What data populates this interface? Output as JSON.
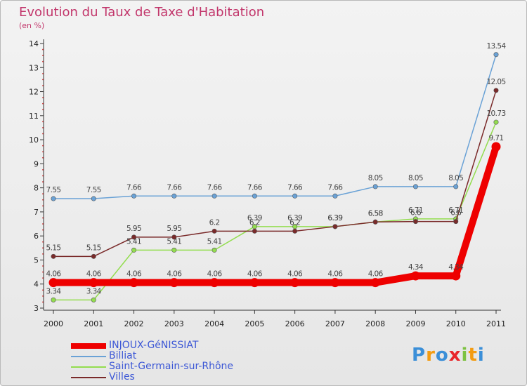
{
  "header": {
    "title": "Evolution du Taux de Taxe d'Habitation",
    "subtitle": "(en %)"
  },
  "chart_data": {
    "type": "line",
    "title": "Evolution du Taux de Taxe d'Habitation",
    "ylabel": "(en %)",
    "xlabel": "",
    "x": [
      "2000",
      "2001",
      "2002",
      "2003",
      "2004",
      "2005",
      "2006",
      "2007",
      "2008",
      "2009",
      "2010",
      "2011"
    ],
    "ylim": [
      3,
      14
    ],
    "yticks": [
      "3",
      "4",
      "5",
      "6",
      "7",
      "8",
      "9",
      "10",
      "11",
      "12",
      "13",
      "14"
    ],
    "grid": false,
    "legend_position": "bottom-left",
    "series": [
      {
        "name": "INJOUX-GéNISSIAT",
        "color": "#ee0000",
        "values": [
          4.06,
          4.06,
          4.06,
          4.06,
          4.06,
          4.06,
          4.06,
          4.06,
          4.06,
          4.34,
          4.34,
          9.71
        ],
        "labels": [
          "4.06",
          "4.06",
          "4.06",
          "4.06",
          "4.06",
          "4.06",
          "4.06",
          "4.06",
          "4.06",
          "4.34",
          "4.34",
          "9.71"
        ]
      },
      {
        "name": "Billiat",
        "color": "#6aa2d6",
        "values": [
          7.55,
          7.55,
          7.66,
          7.66,
          7.66,
          7.66,
          7.66,
          7.66,
          8.05,
          8.05,
          8.05,
          13.54
        ],
        "labels": [
          "7.55",
          "7.55",
          "7.66",
          "7.66",
          "7.66",
          "7.66",
          "7.66",
          "7.66",
          "8.05",
          "8.05",
          "8.05",
          "13.54"
        ]
      },
      {
        "name": "Saint-Germain-sur-Rhône",
        "color": "#93dd4f",
        "values": [
          3.34,
          3.34,
          5.41,
          5.41,
          5.41,
          6.39,
          6.39,
          6.39,
          6.58,
          6.71,
          6.71,
          10.73
        ],
        "labels": [
          "3.34",
          "3.34",
          "5.41",
          "5.41",
          "5.41",
          "6.39",
          "6.39",
          "6.39",
          "6.58",
          "6.71",
          "6.71",
          "10.73"
        ]
      },
      {
        "name": "Villes",
        "color": "#7a2a2a",
        "values": [
          5.15,
          5.15,
          5.95,
          5.95,
          6.2,
          6.2,
          6.2,
          6.39,
          6.58,
          6.6,
          6.6,
          12.05
        ],
        "labels": [
          "5.15",
          "5.15",
          "5.95",
          "5.95",
          "6.2",
          "6.2",
          "6.2",
          "6.39",
          "6.58",
          "6.6",
          "6.6",
          "12.05"
        ]
      }
    ]
  },
  "legend": {
    "items": [
      {
        "label": "INJOUX-GéNISSIAT",
        "color": "#ee0000"
      },
      {
        "label": "Billiat",
        "color": "#6aa2d6"
      },
      {
        "label": "Saint-Germain-sur-Rhône",
        "color": "#93dd4f"
      },
      {
        "label": "Villes",
        "color": "#7a2a2a"
      }
    ]
  },
  "logo": {
    "letters": [
      "P",
      "r",
      "o",
      "x",
      "i",
      "t",
      "i"
    ],
    "colors": [
      "#3b8fd8",
      "#f39c12",
      "#3b8fd8",
      "#e8262b",
      "#7dc242",
      "#f39c12",
      "#3b8fd8"
    ]
  }
}
